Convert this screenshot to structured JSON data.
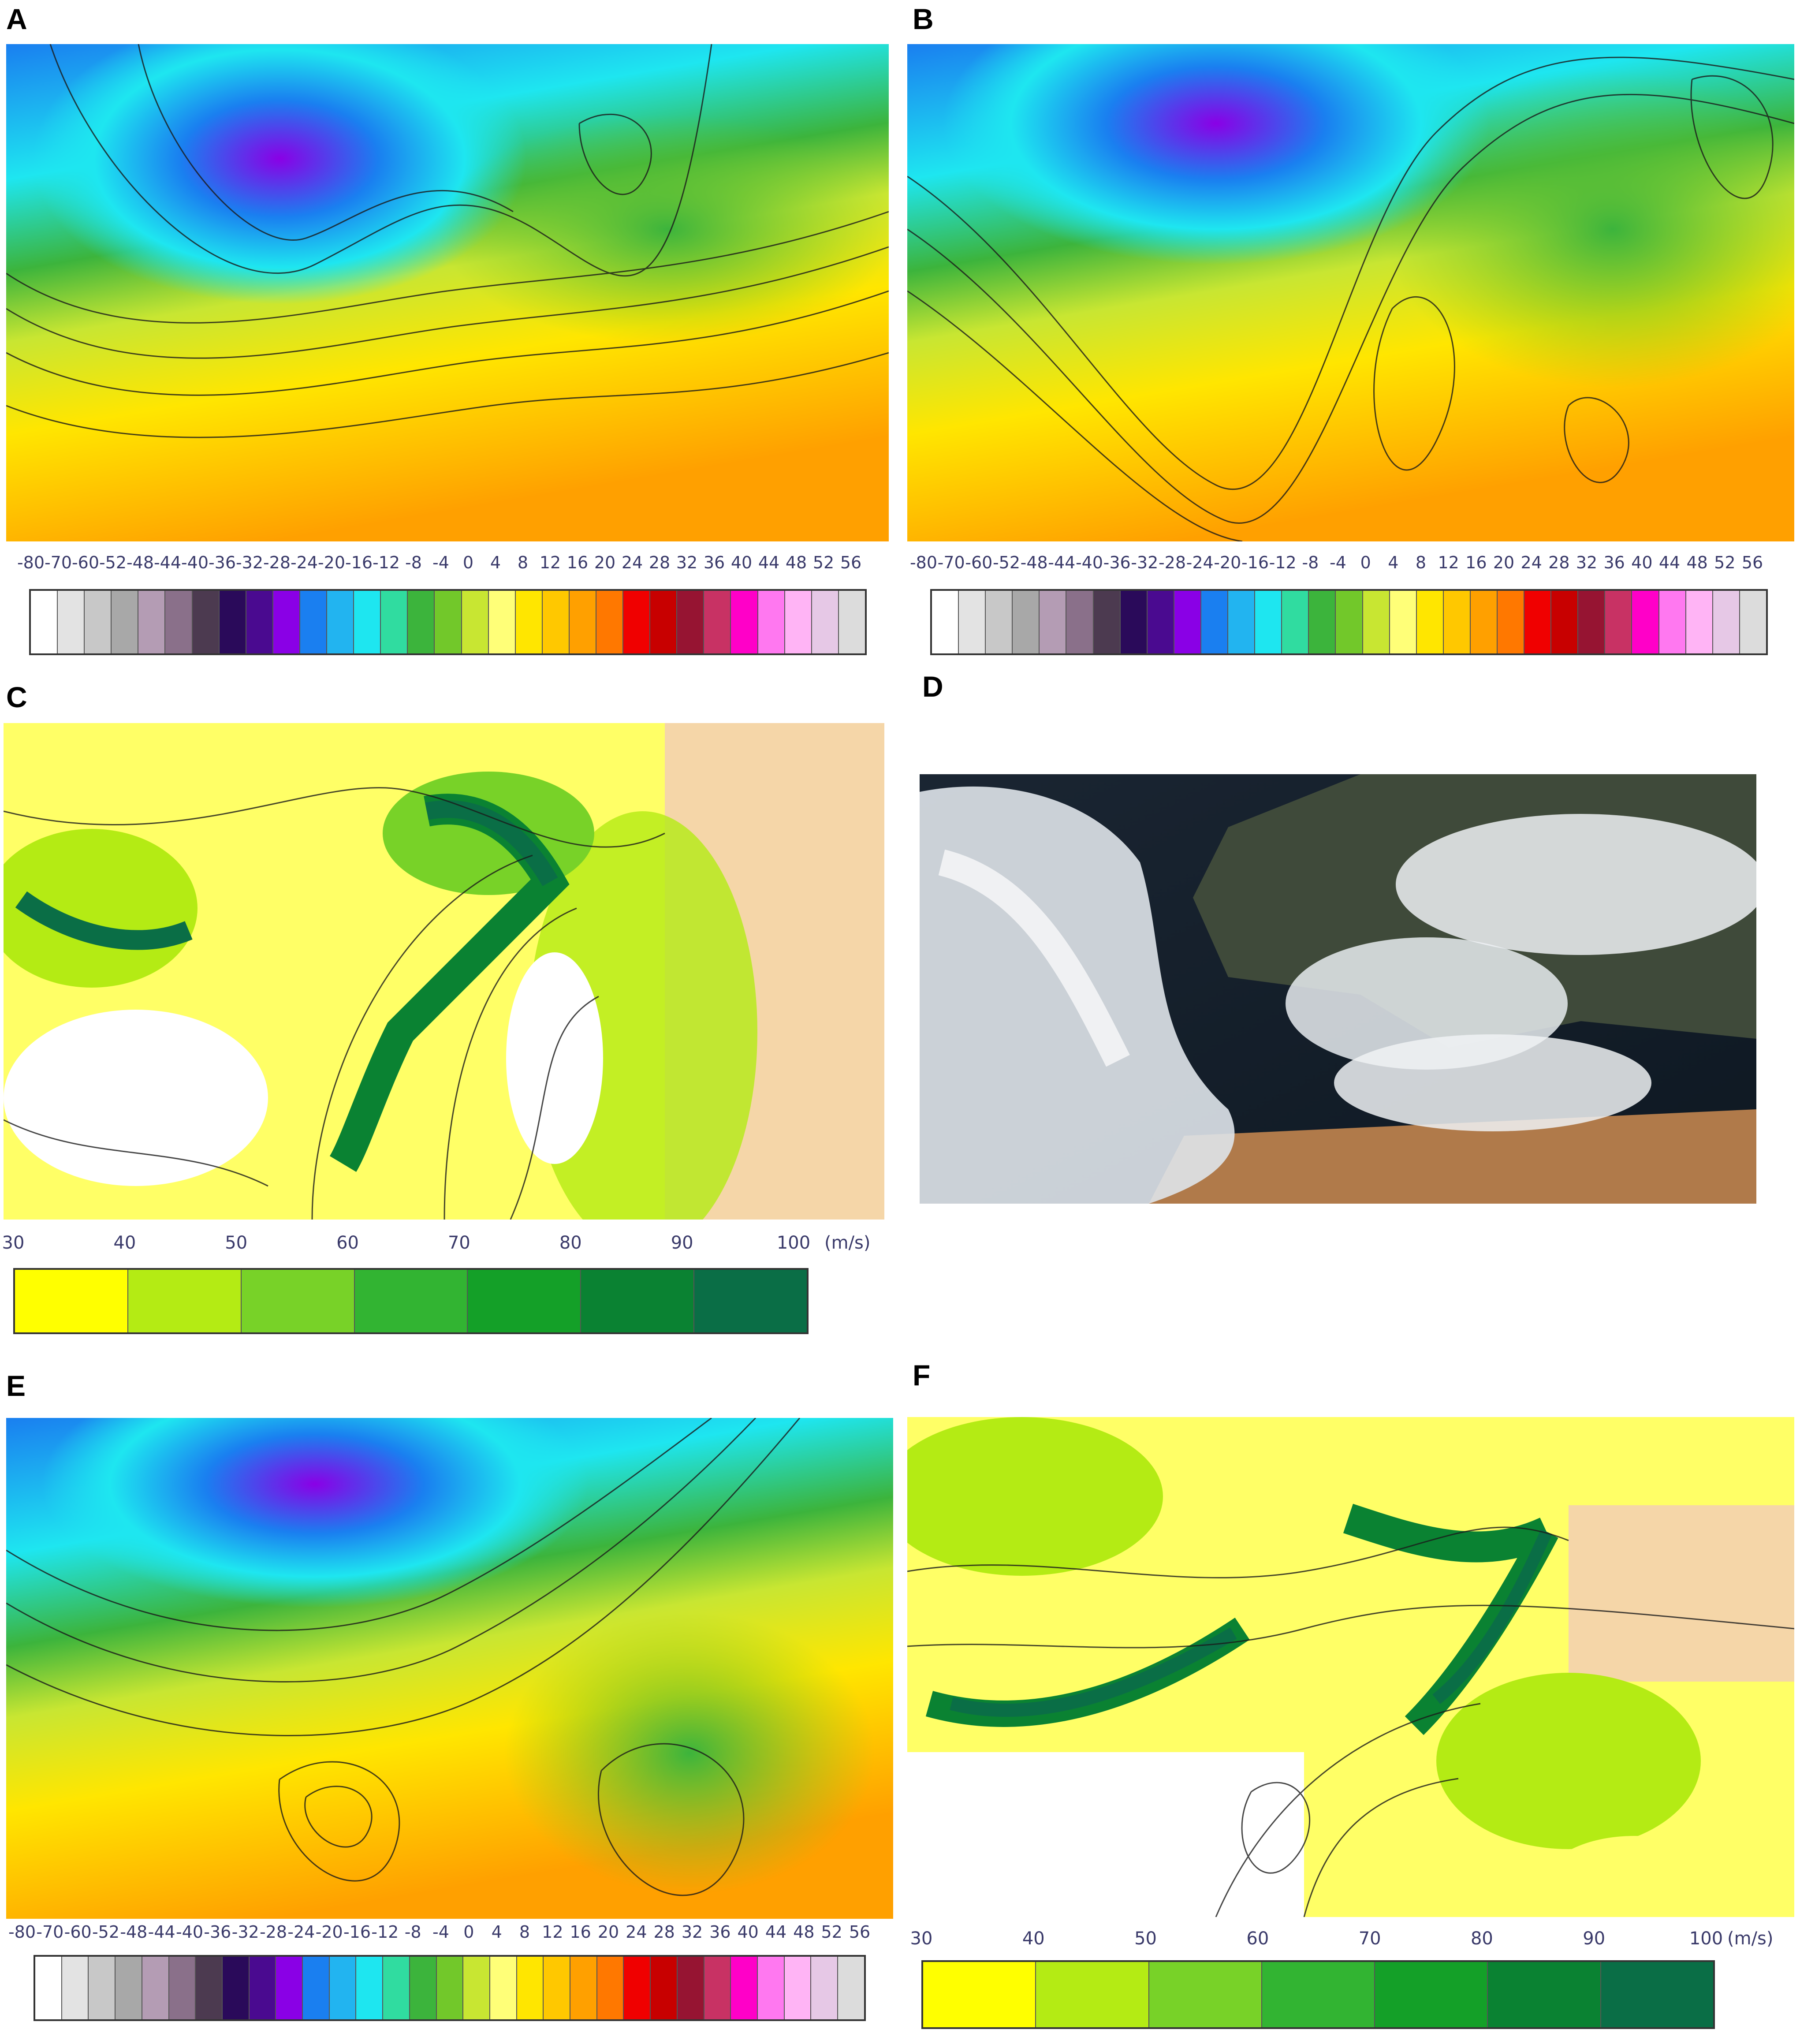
{
  "panels": {
    "A": {
      "label": "A"
    },
    "B": {
      "label": "B"
    },
    "C": {
      "label": "C"
    },
    "D": {
      "label": "D"
    },
    "E": {
      "label": "E"
    },
    "F": {
      "label": "F"
    }
  },
  "temp_scale": {
    "ticks": [
      "-80",
      "-70",
      "-60",
      "-52",
      "-48",
      "-44",
      "-40",
      "-36",
      "-32",
      "-28",
      "-24",
      "-20",
      "-16",
      "-12",
      "-8",
      "-4",
      "0",
      "4",
      "8",
      "12",
      "16",
      "20",
      "24",
      "28",
      "32",
      "36",
      "40",
      "44",
      "48",
      "52",
      "56"
    ],
    "colors": [
      "#ffffff",
      "#e3e3e3",
      "#c8c8c8",
      "#a8a8a8",
      "#b49cb4",
      "#8a708a",
      "#4c3a50",
      "#2a0a5a",
      "#4a0a90",
      "#8a00e6",
      "#1a7ff0",
      "#22b4f0",
      "#1ee6f0",
      "#30dca0",
      "#3cb43c",
      "#72c82a",
      "#c8e632",
      "#ffff78",
      "#ffe600",
      "#ffc800",
      "#ffa000",
      "#ff7800",
      "#f00000",
      "#c80000",
      "#961432",
      "#c83264",
      "#ff00c8",
      "#ff78f0",
      "#ffb4f5",
      "#e6c8e6",
      "#dcdcdc"
    ]
  },
  "wind_scale": {
    "ticks": [
      "30",
      "40",
      "50",
      "60",
      "70",
      "80",
      "90",
      "100"
    ],
    "unit": "(m/s)",
    "colors": [
      "#ffff00",
      "#b4eb14",
      "#78d228",
      "#32b432",
      "#14a028",
      "#0a8232",
      "#0a6e46"
    ]
  }
}
